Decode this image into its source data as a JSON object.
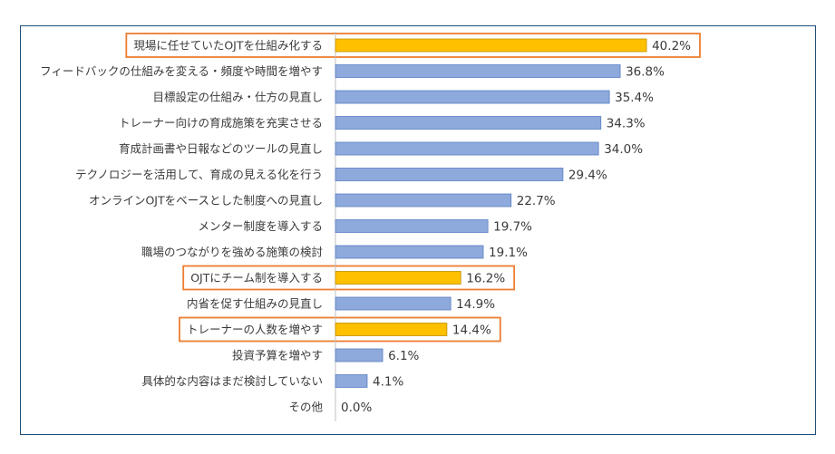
{
  "chart_data": {
    "type": "bar",
    "orientation": "horizontal",
    "title": "",
    "xlabel": "",
    "ylabel": "",
    "xlim": [
      0,
      50
    ],
    "grid": false,
    "unit": "%",
    "categories": [
      "現場に任せていたOJTを仕組み化する",
      "フィードバックの仕組みを変える・頻度や時間を増やす",
      "目標設定の仕組み・仕方の見直し",
      "トレーナー向けの育成施策を充実させる",
      "育成計画書や日報などのツールの見直し",
      "テクノロジーを活用して、育成の見える化を行う",
      "オンラインOJTをベースとした制度への見直し",
      "メンター制度を導入する",
      "職場のつながりを強める施策の検討",
      "OJTにチーム制を導入する",
      "内省を促す仕組みの見直し",
      "トレーナーの人数を増やす",
      "投資予算を増やす",
      "具体的な内容はまだ検討していない",
      "その他"
    ],
    "values": [
      40.2,
      36.8,
      35.4,
      34.3,
      34.0,
      29.4,
      22.7,
      19.7,
      19.1,
      16.2,
      14.9,
      14.4,
      6.1,
      4.1,
      0.0
    ],
    "value_labels": [
      "40.2%",
      "36.8%",
      "35.4%",
      "34.3%",
      "34.0%",
      "29.4%",
      "22.7%",
      "19.7%",
      "19.1%",
      "16.2%",
      "14.9%",
      "14.4%",
      "6.1%",
      "4.1%",
      "0.0%"
    ],
    "highlighted": [
      0,
      9,
      11
    ]
  },
  "colors": {
    "bar": "#8ea9db",
    "bar_stroke": "#5b7fc4",
    "highlight_bar": "#ffc000",
    "highlight_stroke": "#bf8f00",
    "highlight_box": "#ed7d31",
    "axis": "#bfbfbf",
    "frame": "#1f4e79"
  }
}
